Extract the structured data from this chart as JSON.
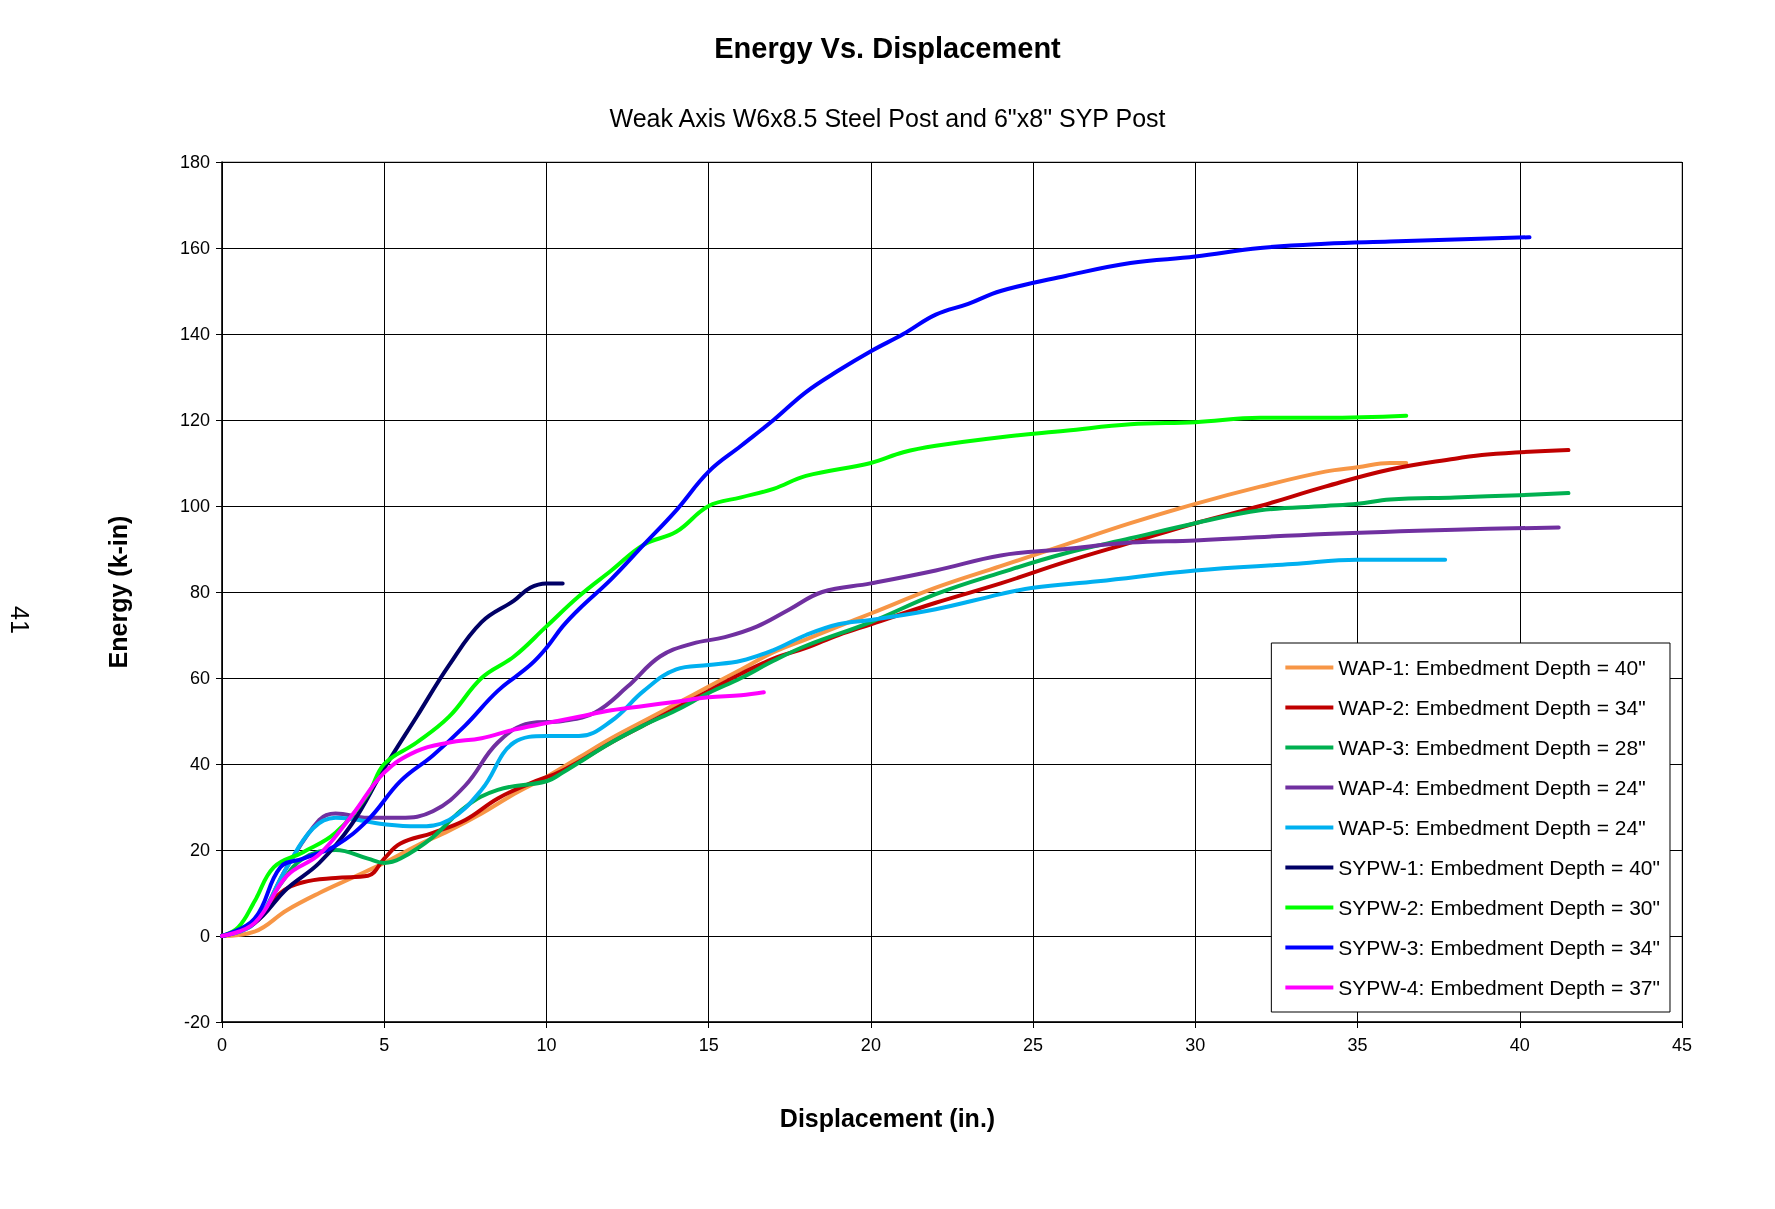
{
  "chart_data": {
    "type": "line",
    "title": "Energy Vs. Displacement",
    "subtitle": "Weak Axis W6x8.5 Steel Post and 6\"x8\" SYP Post",
    "xlabel": "Displacement (in.)",
    "ylabel": "Energy (k-in)",
    "annotations": [
      "41"
    ],
    "xlim": [
      0,
      45
    ],
    "xticks": [
      0,
      5,
      10,
      15,
      20,
      25,
      30,
      35,
      40,
      45
    ],
    "ylim": [
      -20,
      180
    ],
    "yticks": [
      -20,
      0,
      20,
      40,
      60,
      80,
      100,
      120,
      140,
      160,
      180
    ],
    "grid": true,
    "legend": "bottom right",
    "marker": "none",
    "line_style": "solid",
    "series": [
      {
        "name": "WAP-1: Embedment Depth = 40\"",
        "color": "#f79646",
        "x": [
          0,
          1,
          2,
          3,
          4,
          5,
          6,
          7,
          8,
          9,
          10,
          11,
          12,
          13,
          14,
          15,
          16,
          17,
          18,
          19,
          20,
          22,
          24,
          26,
          28,
          30,
          32,
          34,
          35,
          36,
          36.5
        ],
        "values": [
          0,
          1,
          6,
          10,
          13.5,
          17,
          21,
          24.5,
          28.5,
          33,
          37,
          41.5,
          46,
          50,
          54,
          58,
          62,
          66,
          69,
          72,
          75,
          81,
          86,
          91,
          96,
          100.5,
          104.5,
          108,
          109,
          110,
          110
        ]
      },
      {
        "name": "WAP-2: Embedment Depth = 34\"",
        "color": "#c00000",
        "x": [
          0,
          1,
          1.8,
          2.5,
          3.5,
          4.5,
          5,
          5.5,
          6.5,
          7.5,
          8.5,
          9.5,
          10.5,
          12,
          13,
          14,
          15,
          16,
          17,
          18,
          19,
          20,
          22,
          24,
          26,
          28,
          30,
          32,
          34,
          36,
          38,
          39,
          41.5
        ],
        "values": [
          0,
          3,
          10,
          12.5,
          13.5,
          14,
          18,
          21.5,
          24,
          27,
          32,
          35.5,
          38.5,
          45,
          49,
          53,
          57,
          61,
          64.5,
          67,
          70,
          72.5,
          77.5,
          82,
          87,
          91.5,
          96,
          100,
          104.5,
          108.5,
          111,
          112,
          113
        ]
      },
      {
        "name": "WAP-3: Embedment Depth = 28\"",
        "color": "#00b050",
        "x": [
          0,
          1,
          1.8,
          2.5,
          3.5,
          4.5,
          5,
          5.5,
          6.5,
          7.5,
          8.5,
          10,
          10.5,
          12,
          13,
          14,
          15,
          16,
          17,
          18,
          20,
          22,
          24,
          26,
          28,
          30,
          32,
          34,
          35,
          36,
          38,
          40,
          41.5
        ],
        "values": [
          0,
          3,
          12,
          18,
          20,
          18,
          17,
          18,
          23,
          30,
          34,
          36,
          38,
          45,
          49,
          52.5,
          56.5,
          60,
          64,
          67.5,
          73,
          79.5,
          84.5,
          89,
          92.5,
          96,
          99,
          100,
          100.5,
          101.5,
          102,
          102.5,
          103
        ]
      },
      {
        "name": "WAP-4: Embedment Depth = 24\"",
        "color": "#7030a0",
        "x": [
          0,
          1,
          2,
          3,
          3.5,
          4.5,
          5.5,
          6.5,
          7.5,
          8.5,
          9.5,
          10.5,
          11.5,
          12.5,
          13.5,
          14.5,
          15.5,
          16.5,
          17.5,
          18.5,
          20,
          22,
          24,
          26,
          28,
          30,
          34,
          38,
          41.2
        ],
        "values": [
          0,
          3,
          16,
          27,
          28.5,
          27.5,
          27.5,
          29,
          35,
          45,
          49.5,
          50,
          52,
          58,
          65,
          68,
          69.5,
          72,
          76,
          80,
          82,
          85,
          88.5,
          90,
          91.5,
          92,
          93.5,
          94.5,
          95
        ]
      },
      {
        "name": "WAP-5: Embedment Depth = 24\"",
        "color": "#00b0f0",
        "x": [
          0,
          1,
          2,
          2.8,
          3.5,
          5,
          6,
          7,
          8,
          9,
          10,
          11,
          12,
          13,
          14,
          15,
          16,
          17,
          18,
          19,
          20,
          22,
          24,
          25,
          27,
          30,
          33,
          35,
          37.7
        ],
        "values": [
          0,
          3,
          16,
          25,
          27.5,
          26,
          25.5,
          27,
          34,
          45,
          46.5,
          46.5,
          50,
          57,
          62,
          63,
          64,
          66.5,
          70,
          72.5,
          73.5,
          76,
          79.5,
          81,
          82.5,
          85,
          86.5,
          87.5,
          87.5
        ]
      },
      {
        "name": "SYPW-1: Embedment Depth = 40\"",
        "color": "#000066",
        "x": [
          0,
          1,
          2,
          3,
          4,
          5,
          6,
          7,
          8,
          9,
          9.5,
          10,
          10.5
        ],
        "values": [
          0,
          3,
          11,
          17,
          26,
          39,
          51,
          63,
          73,
          78,
          81,
          82,
          82
        ]
      },
      {
        "name": "SYPW-2: Embedment Depth = 30\"",
        "color": "#00ff00",
        "x": [
          0,
          0.5,
          1,
          1.6,
          2.5,
          3.5,
          4.5,
          5,
          6,
          7,
          8,
          9,
          10,
          11,
          12,
          13,
          14,
          15,
          16,
          17,
          18,
          20,
          21,
          22,
          24,
          26,
          28,
          30,
          32,
          34,
          36.5
        ],
        "values": [
          0,
          2,
          8,
          16,
          19.5,
          24,
          33,
          40,
          45,
          51,
          60,
          65,
          72,
          79,
          85,
          91,
          94,
          100,
          102,
          104,
          107,
          110,
          112.5,
          114,
          116,
          117.5,
          119,
          119.5,
          120.5,
          120.5,
          121
        ]
      },
      {
        "name": "SYPW-3: Embedment Depth = 34\"",
        "color": "#0000ff",
        "x": [
          0,
          1,
          1.8,
          2.5,
          3.5,
          4.5,
          5.5,
          6.5,
          7.5,
          8.5,
          9.5,
          10,
          10.5,
          11,
          12,
          13,
          14,
          15,
          16,
          17,
          18,
          19,
          20,
          21,
          22,
          23,
          24,
          26,
          28,
          30,
          32,
          34,
          36,
          38,
          40.3
        ],
        "values": [
          0,
          4,
          16,
          18,
          21,
          27,
          36,
          42,
          49,
          57,
          63,
          67,
          72,
          76,
          83,
          91,
          99,
          108,
          114,
          120,
          126.5,
          131.5,
          136,
          140,
          144.5,
          147,
          150,
          153.5,
          156.5,
          158,
          160,
          161,
          161.5,
          162,
          162.5
        ]
      },
      {
        "name": "SYPW-4: Embedment Depth = 37\"",
        "color": "#ff00ff",
        "x": [
          0,
          1,
          2,
          3,
          4,
          5,
          6,
          7,
          8,
          9,
          10,
          11,
          12,
          13,
          14,
          15,
          16,
          16.7
        ],
        "values": [
          0,
          3,
          14,
          19,
          28,
          38,
          43,
          45,
          46,
          48,
          49.5,
          51,
          52.5,
          53.5,
          54.5,
          55.5,
          56,
          56.7
        ]
      }
    ]
  }
}
